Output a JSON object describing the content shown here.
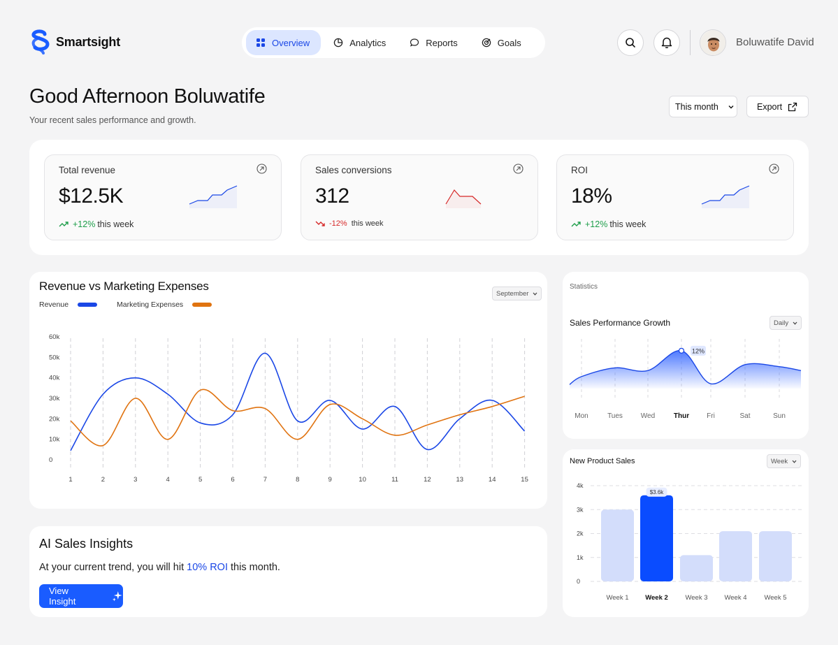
{
  "app": {
    "name": "Smartsight"
  },
  "nav": [
    {
      "label": "Overview",
      "icon": "grid-icon",
      "active": true
    },
    {
      "label": "Analytics",
      "icon": "pie-chart-icon",
      "active": false
    },
    {
      "label": "Reports",
      "icon": "chat-bubble-icon",
      "active": false
    },
    {
      "label": "Goals",
      "icon": "target-icon",
      "active": false
    }
  ],
  "user": {
    "name": "Boluwatife David"
  },
  "page": {
    "greeting": "Good Afternoon Boluwatife",
    "subtitle": "Your recent sales performance and growth.",
    "period": "This month",
    "export": "Export"
  },
  "kpis": [
    {
      "title": "Total revenue",
      "value": "$12.5K",
      "change": "+12%",
      "change_suffix": "this week",
      "direction": "up",
      "color": "#1a47e6"
    },
    {
      "title": "Sales conversions",
      "value": "312",
      "change": "-12%",
      "change_suffix": "this week",
      "direction": "down",
      "color": "#d62828"
    },
    {
      "title": "ROI",
      "value": "18%",
      "change": "+12%",
      "change_suffix": "this week",
      "direction": "up",
      "color": "#1a47e6"
    }
  ],
  "revenue_chart": {
    "title": "Revenue vs Marketing Expenses",
    "select": "September",
    "legend": [
      {
        "name": "Revenue",
        "color": "#1a47e6"
      },
      {
        "name": "Marketing Expenses",
        "color": "#e07310"
      }
    ]
  },
  "statistics": {
    "label": "Statistics",
    "title": "Sales  Performance Growth",
    "select": "Daily",
    "highlight_label": "12%",
    "highlight_day": "Thur"
  },
  "product_sales": {
    "title": "New Product Sales",
    "select": "Week",
    "highlight_label": "$3.6k"
  },
  "ai": {
    "title": "AI Sales Insights",
    "text_before": "At your current trend, you will hit ",
    "text_highlight": "10% ROI",
    "text_after": " this month.",
    "button": "View Insight"
  },
  "chart_data": [
    {
      "type": "line",
      "title": "Revenue vs Marketing Expenses",
      "x": [
        1,
        2,
        3,
        4,
        5,
        6,
        7,
        8,
        9,
        10,
        11,
        12,
        13,
        14,
        15
      ],
      "ylim": [
        0,
        60000
      ],
      "yticks": [
        "0",
        "10k",
        "20k",
        "30k",
        "40k",
        "50k",
        "60k"
      ],
      "grid": "vertical dashed",
      "legend": "top-left",
      "series": [
        {
          "name": "Revenue",
          "color": "#1a47e6",
          "values": [
            4500,
            32000,
            40000,
            32000,
            18000,
            22000,
            52000,
            19000,
            29000,
            15000,
            26000,
            5000,
            20000,
            29000,
            14000
          ]
        },
        {
          "name": "Marketing Expenses",
          "color": "#e07310",
          "values": [
            19000,
            7000,
            30000,
            10000,
            34000,
            24000,
            25000,
            10000,
            27000,
            20000,
            12000,
            17000,
            22000,
            26000,
            31000
          ]
        }
      ]
    },
    {
      "type": "area",
      "title": "Sales  Performance Growth",
      "categories": [
        "Mon",
        "Tues",
        "Wed",
        "Thur",
        "Fri",
        "Sat",
        "Sun"
      ],
      "values": [
        0.3,
        0.52,
        0.45,
        0.95,
        0.12,
        0.6,
        0.55
      ],
      "annotation": {
        "category": "Thur",
        "label": "12%"
      },
      "color": "#1a47e6"
    },
    {
      "type": "bar",
      "title": "New Product Sales",
      "categories": [
        "Week 1",
        "Week 2",
        "Week 3",
        "Week 4",
        "Week 5"
      ],
      "values": [
        3000,
        3600,
        1100,
        2100,
        2100
      ],
      "ylim": [
        0,
        4000
      ],
      "yticks": [
        "0",
        "1k",
        "2k",
        "3k",
        "4k"
      ],
      "highlight": {
        "category": "Week 2",
        "label": "$3.6k",
        "color": "#0a4cff"
      },
      "base_color": "#d3ddfb",
      "grid": "horizontal dashed"
    }
  ]
}
